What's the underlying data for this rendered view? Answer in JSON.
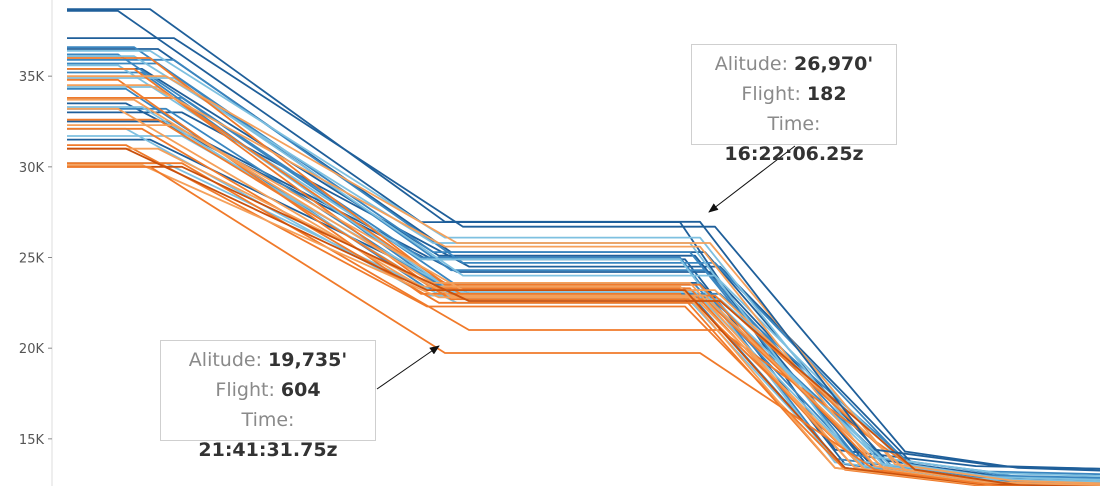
{
  "chart_data": {
    "type": "line",
    "xlabel": "",
    "ylabel": "",
    "ylim": [
      12400,
      39200
    ],
    "yticks": [
      {
        "value": 15000,
        "label": "15K"
      },
      {
        "value": 20000,
        "label": "20K"
      },
      {
        "value": 25000,
        "label": "25K"
      },
      {
        "value": 30000,
        "label": "30K"
      },
      {
        "value": 35000,
        "label": "35K"
      }
    ],
    "grid": false,
    "colors": {
      "blue_dark": "#1f5f9a",
      "blue": "#3a86c0",
      "blue_light": "#7ec0e0",
      "orange": "#f07a2a",
      "orange_light": "#f5a05a",
      "orange_dark": "#c9500c"
    },
    "series_groups": [
      {
        "color": "blue_dark",
        "top": [
          38600,
          37100,
          36500,
          35400,
          33500,
          33000,
          32500,
          31500
        ],
        "plateau": [
          26950,
          26700,
          25300,
          25100,
          24900,
          24500,
          24200,
          23600
        ],
        "end": [
          13500,
          13400,
          12900,
          12800,
          12700,
          12600,
          12400,
          12450
        ]
      },
      {
        "color": "blue",
        "top": [
          36600,
          36200,
          35900,
          35700,
          35200,
          34300,
          33800,
          33200
        ],
        "plateau": [
          25300,
          25000,
          24700,
          24300,
          23500,
          23300,
          23000,
          22800
        ],
        "end": [
          13200,
          13000,
          12900,
          12700,
          12600,
          12500,
          12500,
          12400
        ]
      },
      {
        "color": "blue_light",
        "top": [
          36400,
          36100,
          35600,
          34900,
          34400,
          33300,
          32100,
          31700,
          30200
        ],
        "plateau": [
          26100,
          25800,
          24900,
          24000,
          23200,
          23100,
          22900,
          22700,
          22500
        ],
        "end": [
          13100,
          12900,
          12800,
          12700,
          12600,
          12500,
          12500,
          12400,
          12400
        ]
      },
      {
        "color": "orange",
        "top": [
          36000,
          35400,
          34800,
          33800,
          32600,
          32100,
          31200,
          30200
        ],
        "plateau": [
          23500,
          23300,
          23000,
          22900,
          22700,
          22500,
          22300,
          21000
        ],
        "end": [
          12600,
          12500,
          12500,
          12400,
          12400,
          12400,
          12400,
          12400
        ]
      },
      {
        "color": "orange_light",
        "top": [
          35000,
          34500,
          33700,
          33200,
          32300,
          31000,
          30100
        ],
        "plateau": [
          25800,
          25600,
          23600,
          23400,
          23200,
          22900,
          22800
        ],
        "end": [
          12700,
          12600,
          12500,
          12500,
          12400,
          12400,
          12400
        ]
      },
      {
        "color": "orange_dark",
        "top": [
          31000,
          30000
        ],
        "plateau": [
          23200,
          22600
        ],
        "end": [
          12500,
          12400
        ]
      }
    ],
    "highlight_series": [
      {
        "name": "182",
        "color": "blue_dark",
        "top": 38700,
        "plateau": 26970,
        "end": 13500
      },
      {
        "name": "604",
        "color": "orange",
        "top": 30000,
        "plateau": 19735,
        "end": 12400
      }
    ],
    "annotations": [
      {
        "altitude_label": "Alitude:",
        "altitude": "26,970'",
        "flight_label": "Flight:",
        "flight": "182",
        "time_label": "Time:",
        "time": "16:22:06.25z"
      },
      {
        "altitude_label": "Alitude:",
        "altitude": "19,735'",
        "flight_label": "Flight:",
        "flight": "604",
        "time_label": "Time:",
        "time": "21:41:31.75z"
      }
    ]
  }
}
